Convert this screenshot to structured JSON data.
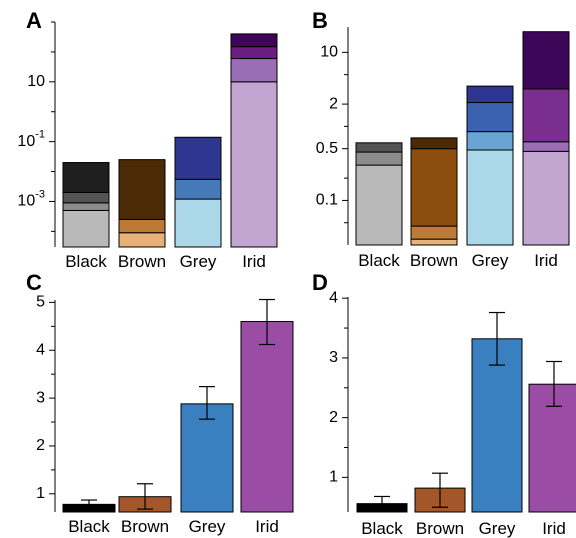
{
  "chart_data": [
    {
      "panel": "A",
      "type": "bar",
      "stacked": true,
      "y_scale": "log",
      "ylim": [
        3e-05,
        1000
      ],
      "yticks": [
        {
          "value": 10,
          "label": "10"
        },
        {
          "value": 0.1,
          "label": "10-1"
        },
        {
          "value": 0.001,
          "label": "10-3"
        }
      ],
      "categories": [
        "Black",
        "Brown",
        "Grey",
        "Irid"
      ],
      "stacks": [
        {
          "category": "Black",
          "boundaries": [
            3e-05,
            0.0005,
            0.0009,
            0.002,
            0.02
          ],
          "colors": [
            "#b9b9b9",
            "#8c8c8c",
            "#555555",
            "#1e1e1e"
          ]
        },
        {
          "category": "Brown",
          "boundaries": [
            3e-05,
            9e-05,
            0.00025,
            0.025
          ],
          "colors": [
            "#e7b27a",
            "#bb7a35",
            "#4b2a06"
          ]
        },
        {
          "category": "Grey",
          "boundaries": [
            3e-05,
            0.0012,
            0.0055,
            0.14
          ],
          "colors": [
            "#acd9e9",
            "#4679b7",
            "#2e3692"
          ]
        },
        {
          "category": "Irid",
          "boundaries": [
            3e-05,
            10,
            60,
            150,
            400
          ],
          "colors": [
            "#c3a5d1",
            "#9a6db4",
            "#6a1e84",
            "#3e0658"
          ]
        }
      ]
    },
    {
      "panel": "B",
      "type": "bar",
      "stacked": true,
      "y_scale": "log",
      "ylim": [
        0.025,
        22
      ],
      "yticks": [
        {
          "value": 10,
          "label": "10"
        },
        {
          "value": 2,
          "label": "2"
        },
        {
          "value": 0.5,
          "label": "0.5"
        },
        {
          "value": 0.1,
          "label": "0.1"
        }
      ],
      "categories": [
        "Black",
        "Brown",
        "Grey",
        "Irid"
      ],
      "stacks": [
        {
          "category": "Black",
          "boundaries": [
            0.025,
            0.3,
            0.45,
            0.6
          ],
          "colors": [
            "#b9b9b9",
            "#8c8c8c",
            "#555555"
          ]
        },
        {
          "category": "Brown",
          "boundaries": [
            0.025,
            0.03,
            0.045,
            0.5,
            0.7
          ],
          "colors": [
            "#e7b27a",
            "#bb7a35",
            "#8b4e0e",
            "#4b2a06"
          ]
        },
        {
          "category": "Grey",
          "boundaries": [
            0.025,
            0.48,
            0.85,
            2.1,
            3.5
          ],
          "colors": [
            "#acd9e9",
            "#6aa4d4",
            "#3a62ae",
            "#2e3692"
          ]
        },
        {
          "category": "Irid",
          "boundaries": [
            0.025,
            0.46,
            0.62,
            3.2,
            19
          ],
          "colors": [
            "#c3a5d1",
            "#9a6db4",
            "#7a2f8e",
            "#3e0658"
          ]
        }
      ]
    },
    {
      "panel": "C",
      "type": "bar",
      "ylim": [
        0.62,
        5.05
      ],
      "yticks": [
        1,
        2,
        3,
        4,
        5
      ],
      "categories": [
        "Black",
        "Brown",
        "Grey",
        "Irid"
      ],
      "values": [
        0.78,
        0.94,
        2.88,
        4.6
      ],
      "error_low": [
        0.72,
        0.68,
        2.56,
        4.12
      ],
      "error_high": [
        0.87,
        1.21,
        3.24,
        5.06
      ],
      "colors": [
        "#000000",
        "#a4552a",
        "#3a80c0",
        "#9b4da6"
      ]
    },
    {
      "panel": "D",
      "type": "bar",
      "ylim": [
        0.42,
        4.02
      ],
      "yticks": [
        1,
        2,
        3,
        4
      ],
      "categories": [
        "Black",
        "Brown",
        "Grey",
        "Irid"
      ],
      "values": [
        0.56,
        0.82,
        3.32,
        2.56
      ],
      "error_low": [
        0.52,
        0.5,
        2.88,
        2.19
      ],
      "error_high": [
        0.68,
        1.07,
        3.76,
        2.94
      ],
      "colors": [
        "#000000",
        "#a4552a",
        "#3a80c0",
        "#9b4da6"
      ]
    }
  ]
}
